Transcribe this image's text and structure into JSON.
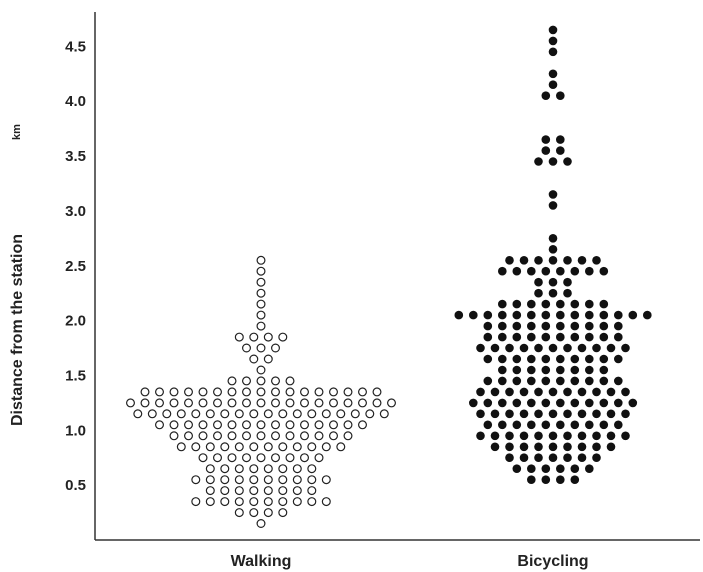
{
  "chart_data": {
    "type": "scatter",
    "subtype": "dot-plot",
    "ylabel": "Distance from the station",
    "yunit": "km",
    "ylim": [
      0,
      4.75
    ],
    "yticks": [
      "0.5",
      "1.0",
      "1.5",
      "2.0",
      "2.5",
      "3.0",
      "3.5",
      "4.0",
      "4.5"
    ],
    "grid": false,
    "legend": "none",
    "categories": [
      "Walking",
      "Bicycling"
    ],
    "series": [
      {
        "category": "Walking",
        "marker": "open",
        "color": "#222222",
        "rows": [
          {
            "y": 2.55,
            "count": 1
          },
          {
            "y": 2.45,
            "count": 1
          },
          {
            "y": 2.35,
            "count": 1
          },
          {
            "y": 2.25,
            "count": 1
          },
          {
            "y": 2.15,
            "count": 1
          },
          {
            "y": 2.05,
            "count": 1
          },
          {
            "y": 1.95,
            "count": 1
          },
          {
            "y": 1.85,
            "count": 4
          },
          {
            "y": 1.75,
            "count": 3
          },
          {
            "y": 1.65,
            "count": 2
          },
          {
            "y": 1.55,
            "count": 1
          },
          {
            "y": 1.45,
            "count": 5
          },
          {
            "y": 1.35,
            "count": 17
          },
          {
            "y": 1.25,
            "count": 19
          },
          {
            "y": 1.15,
            "count": 18
          },
          {
            "y": 1.05,
            "count": 15
          },
          {
            "y": 0.95,
            "count": 13
          },
          {
            "y": 0.85,
            "count": 12
          },
          {
            "y": 0.75,
            "count": 9
          },
          {
            "y": 0.65,
            "count": 8
          },
          {
            "y": 0.55,
            "count": 10
          },
          {
            "y": 0.45,
            "count": 8
          },
          {
            "y": 0.35,
            "count": 10
          },
          {
            "y": 0.25,
            "count": 4
          },
          {
            "y": 0.15,
            "count": 1
          }
        ]
      },
      {
        "category": "Bicycling",
        "marker": "filled",
        "color": "#111111",
        "rows": [
          {
            "y": 4.65,
            "count": 1
          },
          {
            "y": 4.55,
            "count": 1
          },
          {
            "y": 4.45,
            "count": 1
          },
          {
            "y": 4.25,
            "count": 1
          },
          {
            "y": 4.15,
            "count": 1
          },
          {
            "y": 4.05,
            "count": 2
          },
          {
            "y": 3.65,
            "count": 2
          },
          {
            "y": 3.55,
            "count": 2
          },
          {
            "y": 3.45,
            "count": 3
          },
          {
            "y": 3.15,
            "count": 1
          },
          {
            "y": 3.05,
            "count": 1
          },
          {
            "y": 2.75,
            "count": 1
          },
          {
            "y": 2.65,
            "count": 1
          },
          {
            "y": 2.55,
            "count": 7
          },
          {
            "y": 2.45,
            "count": 8
          },
          {
            "y": 2.35,
            "count": 3
          },
          {
            "y": 2.25,
            "count": 3
          },
          {
            "y": 2.15,
            "count": 8
          },
          {
            "y": 2.05,
            "count": 14
          },
          {
            "y": 1.95,
            "count": 10
          },
          {
            "y": 1.85,
            "count": 10
          },
          {
            "y": 1.75,
            "count": 11
          },
          {
            "y": 1.65,
            "count": 10
          },
          {
            "y": 1.55,
            "count": 8
          },
          {
            "y": 1.45,
            "count": 10
          },
          {
            "y": 1.35,
            "count": 11
          },
          {
            "y": 1.25,
            "count": 12
          },
          {
            "y": 1.15,
            "count": 11
          },
          {
            "y": 1.05,
            "count": 10
          },
          {
            "y": 0.95,
            "count": 11
          },
          {
            "y": 0.85,
            "count": 9
          },
          {
            "y": 0.75,
            "count": 7
          },
          {
            "y": 0.65,
            "count": 6
          },
          {
            "y": 0.55,
            "count": 4
          }
        ]
      }
    ]
  }
}
